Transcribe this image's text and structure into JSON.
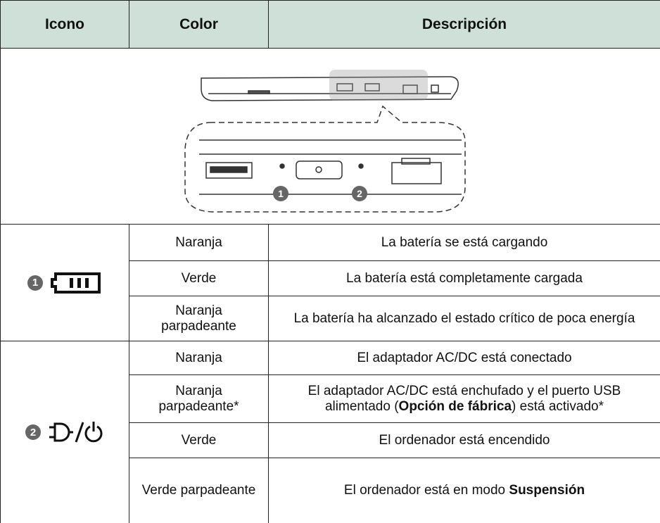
{
  "table": {
    "header": [
      "Icono",
      "Color",
      "Descripción"
    ],
    "diagram": {
      "markers": [
        "1",
        "2"
      ]
    },
    "groups": [
      {
        "marker": "1",
        "rows": [
          {
            "color": "Naranja",
            "description": [
              {
                "text": "La batería se está cargando",
                "bold": false
              }
            ]
          },
          {
            "color": "Verde",
            "description": [
              {
                "text": "La batería está completamente cargada",
                "bold": false
              }
            ]
          },
          {
            "color": "Naranja parpadeante",
            "description": [
              {
                "text": "La batería ha alcanzado el estado crítico de poca energía",
                "bold": false
              }
            ]
          }
        ]
      },
      {
        "marker": "2",
        "rows": [
          {
            "color": "Naranja",
            "description": [
              {
                "text": "El adaptador AC/DC está conectado",
                "bold": false
              }
            ]
          },
          {
            "color": "Naranja parpadeante*",
            "description": [
              {
                "text": "El adaptador AC/DC está enchufado y el puerto USB alimentado (",
                "bold": false
              },
              {
                "text": "Opción de fábrica",
                "bold": true
              },
              {
                "text": ") está activado*",
                "bold": false
              }
            ]
          },
          {
            "color": "Verde",
            "description": [
              {
                "text": "El ordenador está encendido",
                "bold": false
              }
            ]
          },
          {
            "color": "Verde parpadeante",
            "description": [
              {
                "text": "El ordenador está en modo ",
                "bold": false
              },
              {
                "text": "Suspensión",
                "bold": true
              }
            ]
          }
        ]
      }
    ]
  }
}
